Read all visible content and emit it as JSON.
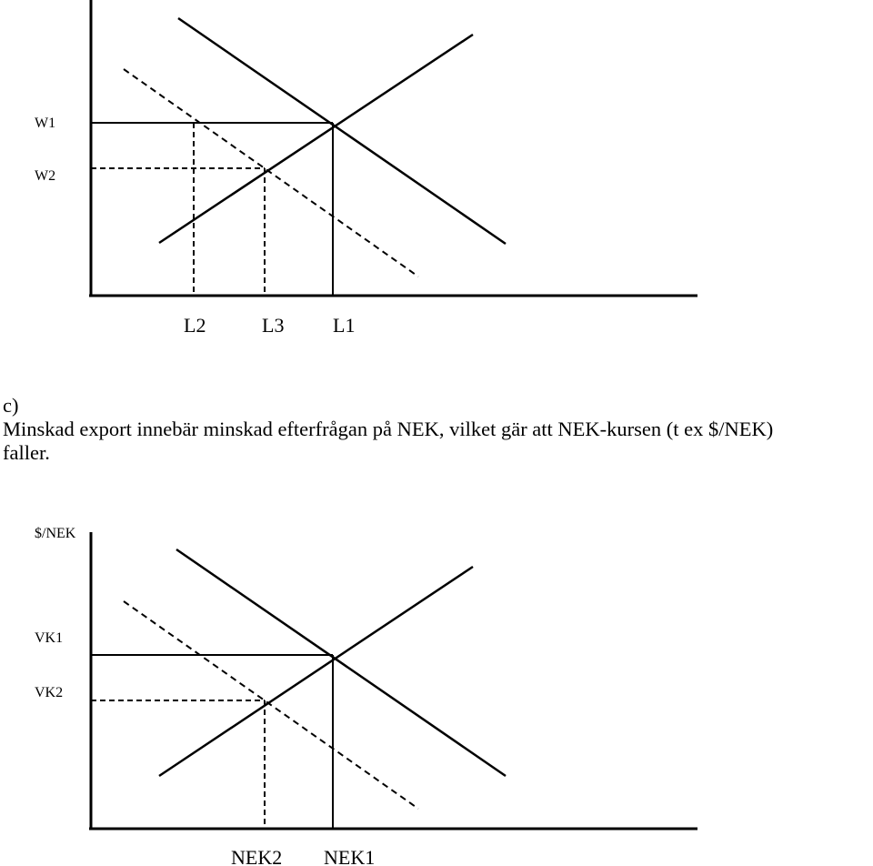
{
  "diagram_top": {
    "y_labels": {
      "w1": "W1",
      "w2": "W2"
    },
    "x_labels": {
      "l2": "L2",
      "l3": "L3",
      "l1": "L1"
    }
  },
  "text": {
    "part_label": "c)",
    "line1": "Minskad export innebär minskad efterfrågan på NEK, vilket gär att NEK-kursen (t ex $/NEK)",
    "line2": "faller."
  },
  "diagram_bottom": {
    "y_axis_label": "$/NEK",
    "y_labels": {
      "vk1": "VK1",
      "vk2": "VK2"
    },
    "x_labels": {
      "nek2": "NEK2",
      "nek1": "NEK1"
    }
  }
}
